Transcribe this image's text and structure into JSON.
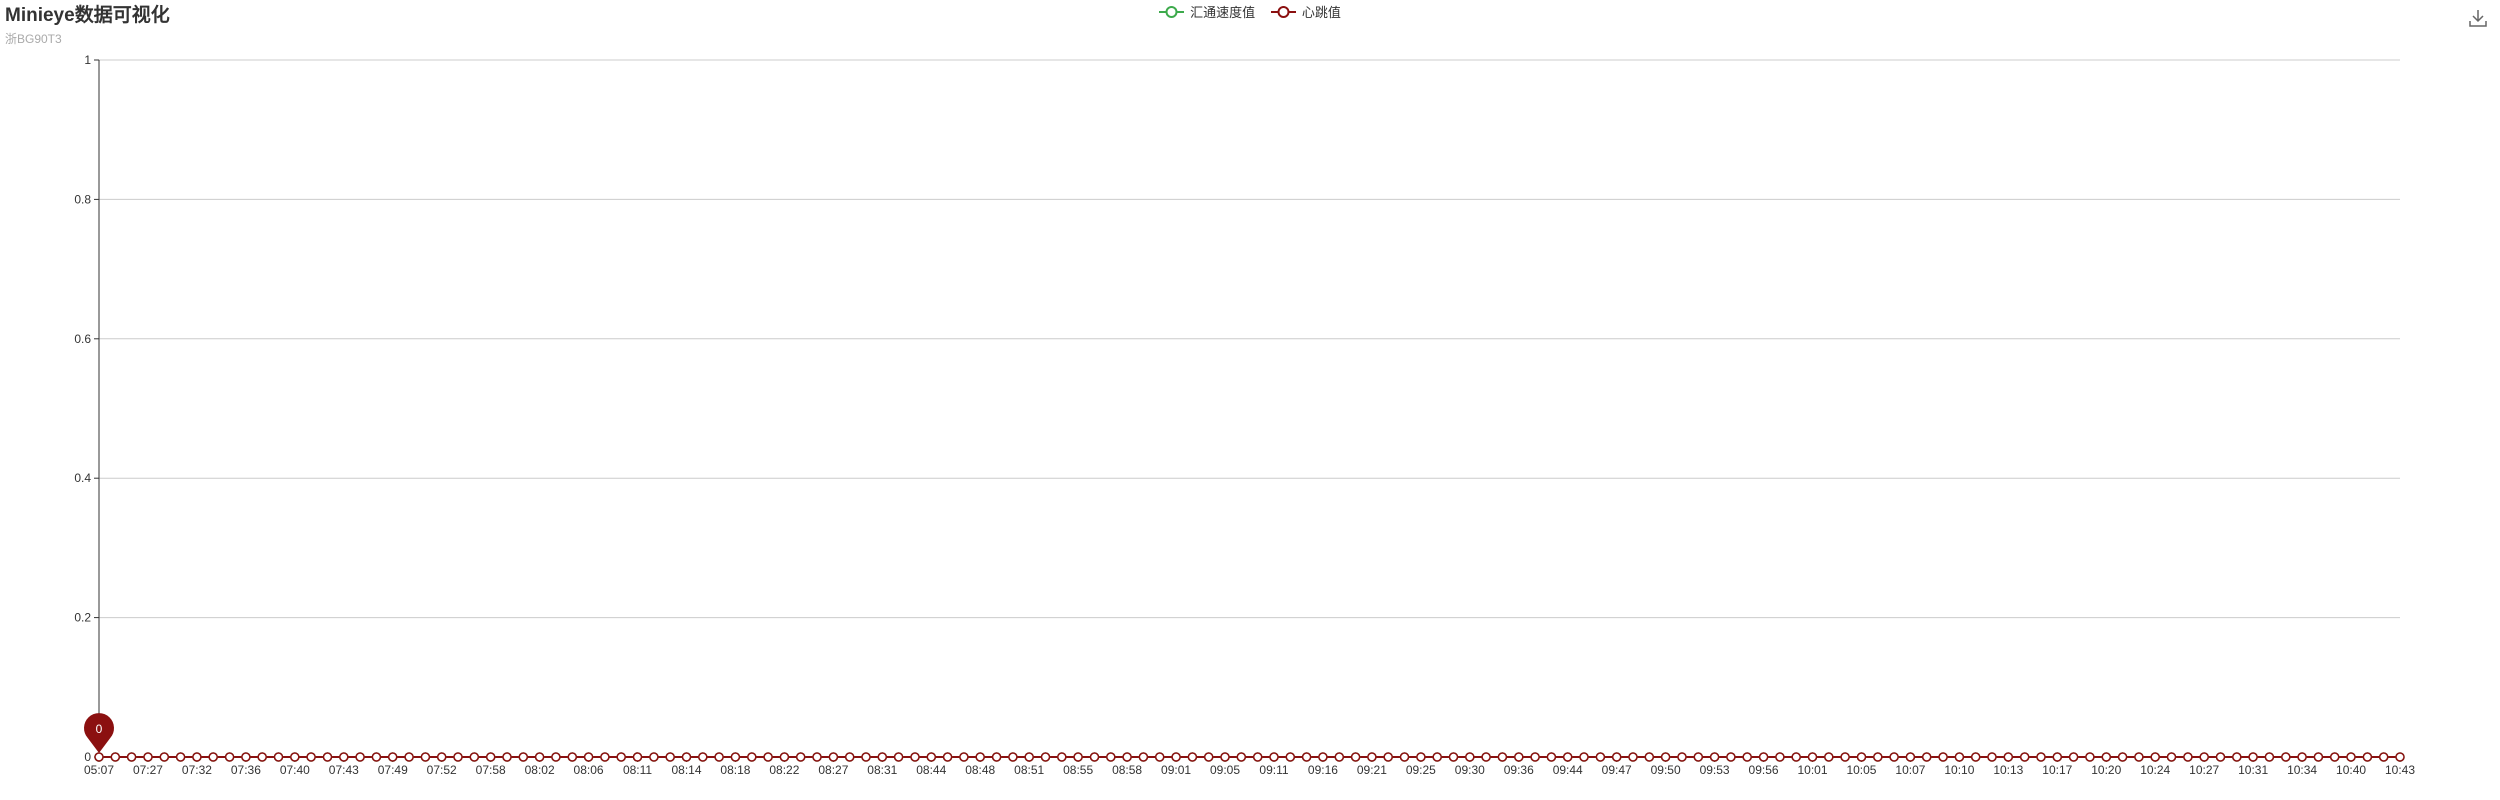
{
  "title": "Minieye数据可视化",
  "subtitle": "浙BG90T3",
  "legend": [
    {
      "name": "汇通速度值",
      "color": "#3daa4c"
    },
    {
      "name": "心跳值",
      "color": "#8b1010"
    }
  ],
  "toolbar": {
    "download_icon": "download-icon"
  },
  "chart_data": {
    "type": "line",
    "title": "Minieye数据可视化",
    "subtitle": "浙BG90T3",
    "xlabel": "",
    "ylabel": "",
    "ylim": [
      0,
      1
    ],
    "y_ticks": [
      "0",
      "0.2",
      "0.4",
      "0.6",
      "0.8",
      "1"
    ],
    "grid": true,
    "legend_position": "top-center",
    "x_tick_labels": [
      "05:07",
      "07:27",
      "07:32",
      "07:36",
      "07:40",
      "07:43",
      "07:49",
      "07:52",
      "07:58",
      "08:02",
      "08:06",
      "08:11",
      "08:14",
      "08:18",
      "08:22",
      "08:27",
      "08:31",
      "08:44",
      "08:48",
      "08:51",
      "08:55",
      "08:58",
      "09:01",
      "09:05",
      "09:11",
      "09:16",
      "09:21",
      "09:25",
      "09:30",
      "09:36",
      "09:44",
      "09:47",
      "09:50",
      "09:53",
      "09:56",
      "10:01",
      "10:05",
      "10:07",
      "10:10",
      "10:13",
      "10:17",
      "10:20",
      "10:24",
      "10:27",
      "10:31",
      "10:34",
      "10:40",
      "10:43"
    ],
    "point_count": 142,
    "series": [
      {
        "name": "汇通速度值",
        "color": "#3daa4c",
        "value": 0
      },
      {
        "name": "心跳值",
        "color": "#8b1010",
        "value": 0
      }
    ],
    "mark_point": {
      "series": "心跳值",
      "label": "0",
      "value": 0,
      "x_index": 0,
      "color": "#8b1010"
    }
  }
}
